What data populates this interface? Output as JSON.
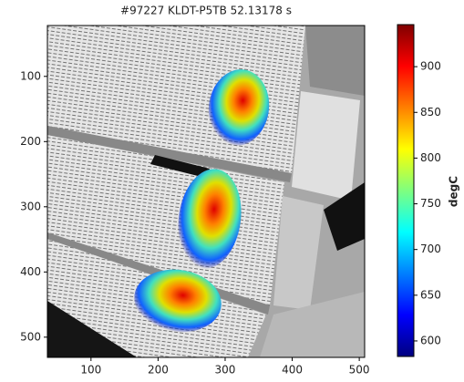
{
  "chart_data": {
    "type": "image",
    "title": "#97227 KLDT-P5TB 52.13178 s",
    "xlim": [
      35,
      508
    ],
    "xticks": [
      100,
      200,
      300,
      400,
      500
    ],
    "ylim": [
      531,
      22
    ],
    "yticks": [
      100,
      200,
      300,
      400,
      500
    ],
    "colorbar": {
      "label": "degC",
      "colormap": "jet",
      "clim": [
        583,
        946
      ],
      "ticks": [
        600,
        650,
        700,
        750,
        800,
        850,
        900
      ]
    }
  }
}
